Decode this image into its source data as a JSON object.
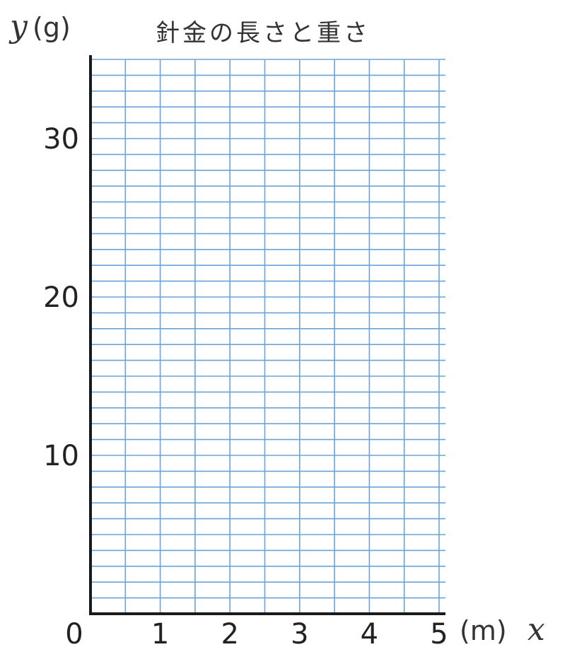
{
  "chart_data": {
    "type": "line",
    "title": "針金の長さと重さ",
    "x_variable": "x",
    "y_variable": "y",
    "x_unit": "(m)",
    "y_unit": "(g)",
    "xlim": [
      0,
      5
    ],
    "ylim": [
      0,
      35
    ],
    "x_ticks": [
      "0",
      "1",
      "2",
      "3",
      "4",
      "5"
    ],
    "y_ticks": [
      "10",
      "20",
      "30"
    ],
    "y_tick_values": [
      10,
      20,
      30
    ],
    "x_minor_step": 0.5,
    "y_minor_step": 1,
    "grid": true,
    "grid_color": "#6aa3d8",
    "axis_color": "#1a1a1a",
    "series": []
  }
}
